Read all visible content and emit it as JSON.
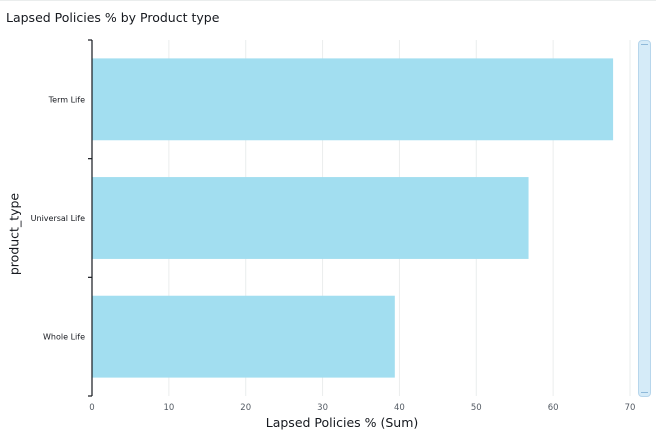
{
  "title": "Lapsed Policies % by Product type",
  "colors": {
    "bar": "#a2def0",
    "grid": "#eaeded",
    "axis": "#16191f",
    "scrollbar": "#d5ebf8"
  },
  "chart_data": {
    "type": "bar",
    "orientation": "horizontal",
    "categories": [
      "Term Life",
      "Universal Life",
      "Whole Life"
    ],
    "values": [
      67.8,
      56.8,
      39.4
    ],
    "xlabel": "Lapsed Policies % (Sum)",
    "ylabel": "product_type",
    "xlim": [
      0,
      70
    ],
    "xticks": [
      "0",
      "10",
      "20",
      "30",
      "40",
      "50",
      "60",
      "70"
    ],
    "grid": true,
    "legend": "none"
  }
}
